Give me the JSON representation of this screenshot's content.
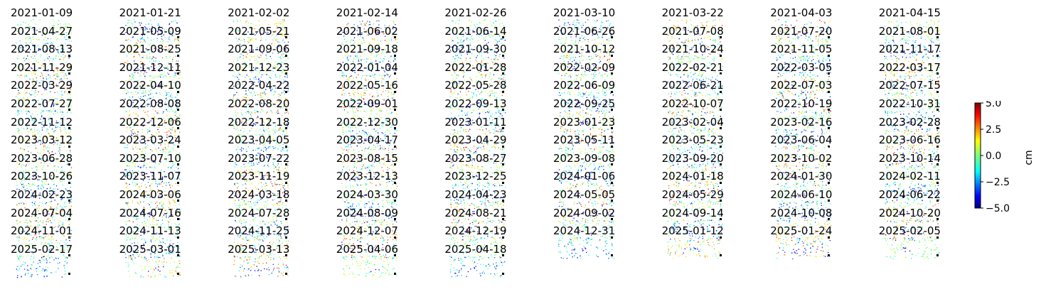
{
  "chart_data": {
    "type": "heatmap",
    "panel_titles": [
      "2021-01-09",
      "2021-01-21",
      "2021-02-02",
      "2021-02-14",
      "2021-02-26",
      "2021-03-10",
      "2021-03-22",
      "2021-04-03",
      "2021-04-15",
      "2021-04-27",
      "2021-05-09",
      "2021-05-21",
      "2021-06-02",
      "2021-06-14",
      "2021-06-26",
      "2021-07-08",
      "2021-07-20",
      "2021-08-01",
      "2021-08-13",
      "2021-08-25",
      "2021-09-06",
      "2021-09-18",
      "2021-09-30",
      "2021-10-12",
      "2021-10-24",
      "2021-11-05",
      "2021-11-17",
      "2021-11-29",
      "2021-12-11",
      "2021-12-23",
      "2022-01-04",
      "2022-01-28",
      "2022-02-09",
      "2022-02-21",
      "2022-03-05",
      "2022-03-17",
      "2022-03-29",
      "2022-04-10",
      "2022-04-22",
      "2022-05-16",
      "2022-05-28",
      "2022-06-09",
      "2022-06-21",
      "2022-07-03",
      "2022-07-15",
      "2022-07-27",
      "2022-08-08",
      "2022-08-20",
      "2022-09-01",
      "2022-09-13",
      "2022-09-25",
      "2022-10-07",
      "2022-10-19",
      "2022-10-31",
      "2022-11-12",
      "2022-12-06",
      "2022-12-18",
      "2022-12-30",
      "2023-01-11",
      "2023-01-23",
      "2023-02-04",
      "2023-02-16",
      "2023-02-28",
      "2023-03-12",
      "2023-03-24",
      "2023-04-05",
      "2023-04-17",
      "2023-04-29",
      "2023-05-11",
      "2023-05-23",
      "2023-06-04",
      "2023-06-16",
      "2023-06-28",
      "2023-07-10",
      "2023-07-22",
      "2023-08-15",
      "2023-08-27",
      "2023-09-08",
      "2023-09-20",
      "2023-10-02",
      "2023-10-14",
      "2023-10-26",
      "2023-11-07",
      "2023-11-19",
      "2023-12-13",
      "2023-12-25",
      "2024-01-06",
      "2024-01-18",
      "2024-01-30",
      "2024-02-11",
      "2024-02-23",
      "2024-03-06",
      "2024-03-18",
      "2024-03-30",
      "2024-04-23",
      "2024-05-05",
      "2024-05-29",
      "2024-06-10",
      "2024-06-22",
      "2024-07-04",
      "2024-07-16",
      "2024-07-28",
      "2024-08-09",
      "2024-08-21",
      "2024-09-02",
      "2024-09-14",
      "2024-10-08",
      "2024-10-20",
      "2024-11-01",
      "2024-11-13",
      "2024-11-25",
      "2024-12-07",
      "2024-12-19",
      "2024-12-31",
      "2025-01-12",
      "2025-01-24",
      "2025-02-05",
      "2025-02-17",
      "2025-03-01",
      "2025-03-13",
      "2025-04-06",
      "2025-04-18"
    ],
    "grid_columns": 9,
    "colorbar": {
      "label": "cm",
      "range": [
        -5.0,
        5.0
      ],
      "ticks": [
        "5.0",
        "2.5",
        "0.0",
        "−2.5",
        "−5.0"
      ],
      "colormap": "jet"
    },
    "axes_visible": false
  }
}
